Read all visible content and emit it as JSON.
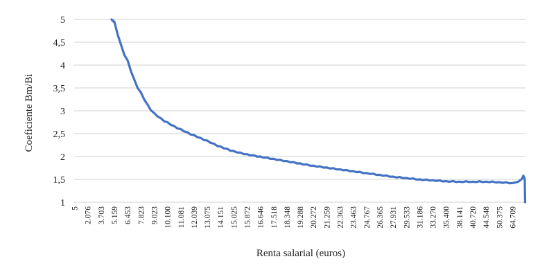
{
  "chart_data": {
    "type": "line",
    "title": "",
    "xlabel": "Renta salarial (euros)",
    "ylabel": "Coeficiente  Bm/Bi",
    "ylim": [
      1,
      5
    ],
    "yticks": [
      "1",
      "1,5",
      "2",
      "2,5",
      "3",
      "3,5",
      "4",
      "4,5",
      "5"
    ],
    "ytick_values": [
      1,
      1.5,
      2,
      2.5,
      3,
      3.5,
      4,
      4.5,
      5
    ],
    "grid": true,
    "legend": null,
    "categories": [
      "5",
      "2.076",
      "3.703",
      "5.159",
      "6.453",
      "7.823",
      "9.023",
      "10.100",
      "11.081",
      "12.039",
      "13.075",
      "14.151",
      "15.025",
      "15.872",
      "16.646",
      "17.518",
      "18.348",
      "19.288",
      "20.272",
      "21.259",
      "22.363",
      "23.463",
      "24.767",
      "26.365",
      "27.931",
      "29.533",
      "31.186",
      "33.270",
      "35.400",
      "38.141",
      "40.720",
      "44.548",
      "50.375",
      "64.709"
    ],
    "series": [
      {
        "name": "Coeficiente Bm/Bi",
        "color": "#4472c4",
        "values": [
          null,
          null,
          null,
          4.95,
          4.1,
          3.4,
          2.95,
          2.75,
          2.6,
          2.47,
          2.35,
          2.22,
          2.12,
          2.05,
          2.0,
          1.95,
          1.9,
          1.85,
          1.8,
          1.76,
          1.72,
          1.68,
          1.64,
          1.6,
          1.56,
          1.53,
          1.5,
          1.48,
          1.46,
          1.45,
          1.45,
          1.45,
          1.44,
          1.5
        ]
      }
    ],
    "notes": "Curve starts above 5 near x=5.159, decreases monotonically, flattens around 1.45 after ~38.141, small spike to ~1.58 at far right then drops to 1."
  },
  "axes": {
    "x_title": "Renta salarial (euros)",
    "y_title": "Coeficiente  Bm/Bi"
  }
}
